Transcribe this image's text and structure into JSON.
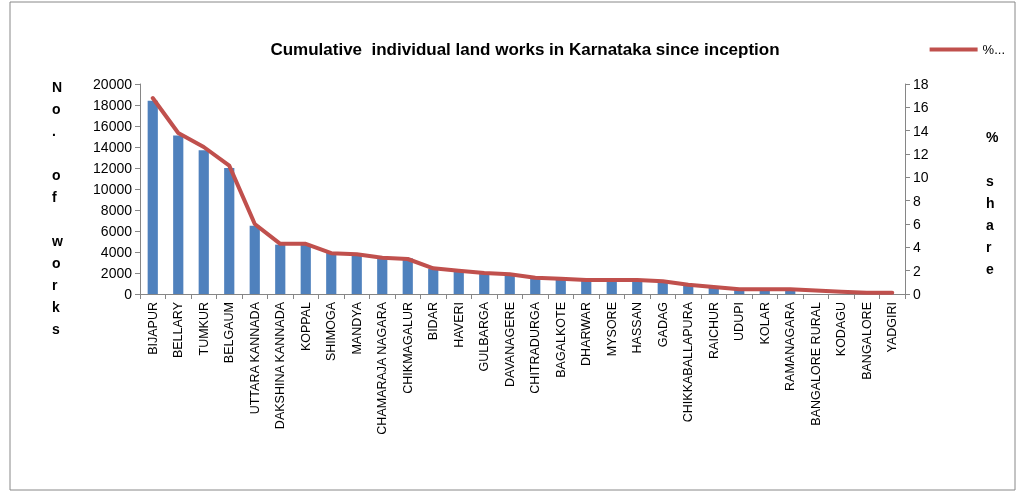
{
  "chart_data": {
    "type": "bar",
    "title": "Cumulative  individual land works in Karnataka since inception",
    "ylabel": "No. of works",
    "y2label": "% share",
    "categories": [
      "BIJAPUR",
      "BELLARY",
      "TUMKUR",
      "BELGAUM",
      "UTTARA KANNADA",
      "DAKSHINA KANNADA",
      "KOPPAL",
      "SHIMOGA",
      "MANDYA",
      "CHAMARAJA NAGARA",
      "CHIKMAGALUR",
      "BIDAR",
      "HAVERI",
      "GULBARGA",
      "DAVANAGERE",
      "CHITRADURGA",
      "BAGALKOTE",
      "DHARWAR",
      "MYSORE",
      "HASSAN",
      "GADAG",
      "CHIKKABALLAPURA",
      "RAICHUR",
      "UDUPI",
      "KOLAR",
      "RAMANAGARA",
      "BANGALORE RURAL",
      "KODAGU",
      "BANGALORE",
      "YADGIRI"
    ],
    "series": [
      {
        "color": "#4f81bd",
        "values": [
          18400,
          15100,
          13700,
          12000,
          6500,
          4700,
          4700,
          3900,
          3800,
          3400,
          3400,
          2400,
          2100,
          1900,
          1900,
          1600,
          1400,
          1300,
          1300,
          1300,
          1300,
          900,
          700,
          400,
          400,
          400,
          null,
          null,
          null,
          null
        ]
      },
      {
        "type": "line",
        "name": "%...",
        "axis": "y2",
        "color": "#c0504d",
        "values": [
          16.8,
          13.8,
          12.6,
          11,
          6,
          4.3,
          4.3,
          3.5,
          3.4,
          3.1,
          3.0,
          2.2,
          2.0,
          1.8,
          1.7,
          1.4,
          1.3,
          1.2,
          1.2,
          1.2,
          1.1,
          0.8,
          0.6,
          0.4,
          0.4,
          0.4,
          0.3,
          0.2,
          0.1,
          0.1
        ]
      }
    ],
    "ylim": [
      0,
      20000
    ],
    "yticks": [
      0,
      2000,
      4000,
      6000,
      8000,
      10000,
      12000,
      14000,
      16000,
      18000,
      20000
    ],
    "y2lim": [
      0,
      18
    ],
    "y2ticks": [
      0,
      2,
      4,
      6,
      8,
      10,
      12,
      14,
      16,
      18
    ],
    "grid": false,
    "legend": "top right",
    "marker": "none",
    "line_style": "solid"
  }
}
